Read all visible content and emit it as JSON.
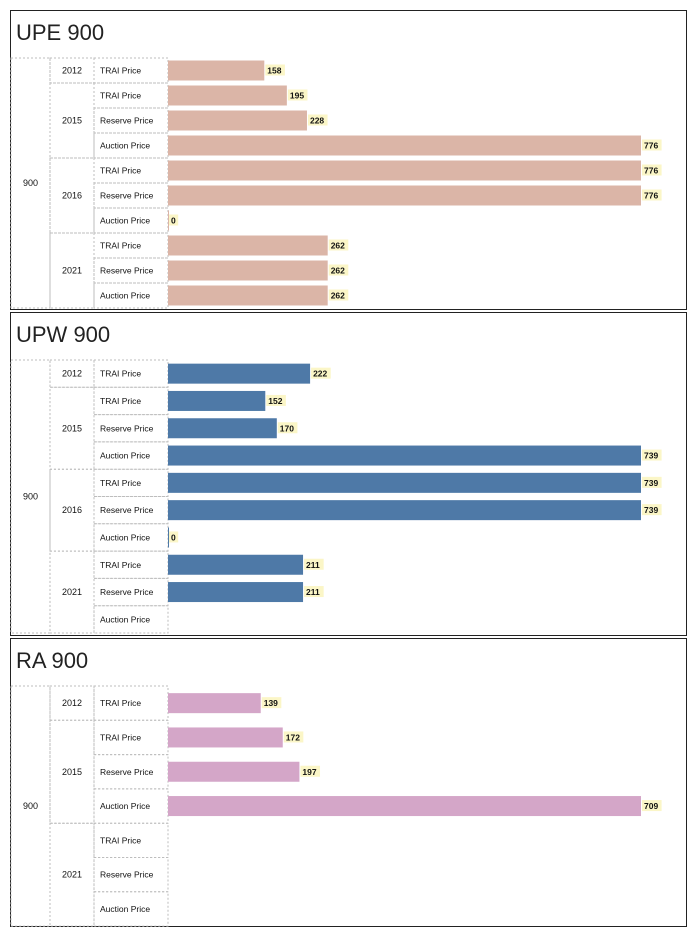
{
  "chart_data": [
    {
      "type": "bar",
      "title": "UPE 900",
      "color": "#dbb5a7",
      "band": "900",
      "groups": [
        {
          "year": "2012",
          "rows": [
            {
              "category": "TRAI Price",
              "value": 158
            }
          ]
        },
        {
          "year": "2015",
          "rows": [
            {
              "category": "TRAI Price",
              "value": 195
            },
            {
              "category": "Reserve Price",
              "value": 228
            },
            {
              "category": "Auction Price",
              "value": 776
            }
          ]
        },
        {
          "year": "2016",
          "rows": [
            {
              "category": "TRAI Price",
              "value": 776
            },
            {
              "category": "Reserve Price",
              "value": 776
            },
            {
              "category": "Auction Price",
              "value": 0
            }
          ]
        },
        {
          "year": "2021",
          "rows": [
            {
              "category": "TRAI Price",
              "value": 262
            },
            {
              "category": "Reserve Price",
              "value": 262
            },
            {
              "category": "Auction Price",
              "value": 262
            }
          ]
        }
      ],
      "xlim": [
        0,
        776
      ]
    },
    {
      "type": "bar",
      "title": "UPW 900",
      "color": "#4e79a7",
      "band": "900",
      "groups": [
        {
          "year": "2012",
          "rows": [
            {
              "category": "TRAI Price",
              "value": 222
            }
          ]
        },
        {
          "year": "2015",
          "rows": [
            {
              "category": "TRAI Price",
              "value": 152
            },
            {
              "category": "Reserve Price",
              "value": 170
            },
            {
              "category": "Auction Price",
              "value": 739
            }
          ]
        },
        {
          "year": "2016",
          "rows": [
            {
              "category": "TRAI Price",
              "value": 739
            },
            {
              "category": "Reserve Price",
              "value": 739
            },
            {
              "category": "Auction Price",
              "value": 0
            }
          ]
        },
        {
          "year": "2021",
          "rows": [
            {
              "category": "TRAI Price",
              "value": 211
            },
            {
              "category": "Reserve Price",
              "value": 211
            },
            {
              "category": "Auction Price",
              "value": null
            }
          ]
        }
      ],
      "xlim": [
        0,
        739
      ]
    },
    {
      "type": "bar",
      "title": "RA 900",
      "color": "#d4a6c8",
      "band": "900",
      "groups": [
        {
          "year": "2012",
          "rows": [
            {
              "category": "TRAI Price",
              "value": 139
            }
          ]
        },
        {
          "year": "2015",
          "rows": [
            {
              "category": "TRAI Price",
              "value": 172
            },
            {
              "category": "Reserve Price",
              "value": 197
            },
            {
              "category": "Auction Price",
              "value": 709
            }
          ]
        },
        {
          "year": "2021",
          "rows": [
            {
              "category": "TRAI Price",
              "value": null
            },
            {
              "category": "Reserve Price",
              "value": null
            },
            {
              "category": "Auction Price",
              "value": null
            }
          ]
        }
      ],
      "xlim": [
        0,
        709
      ]
    }
  ]
}
